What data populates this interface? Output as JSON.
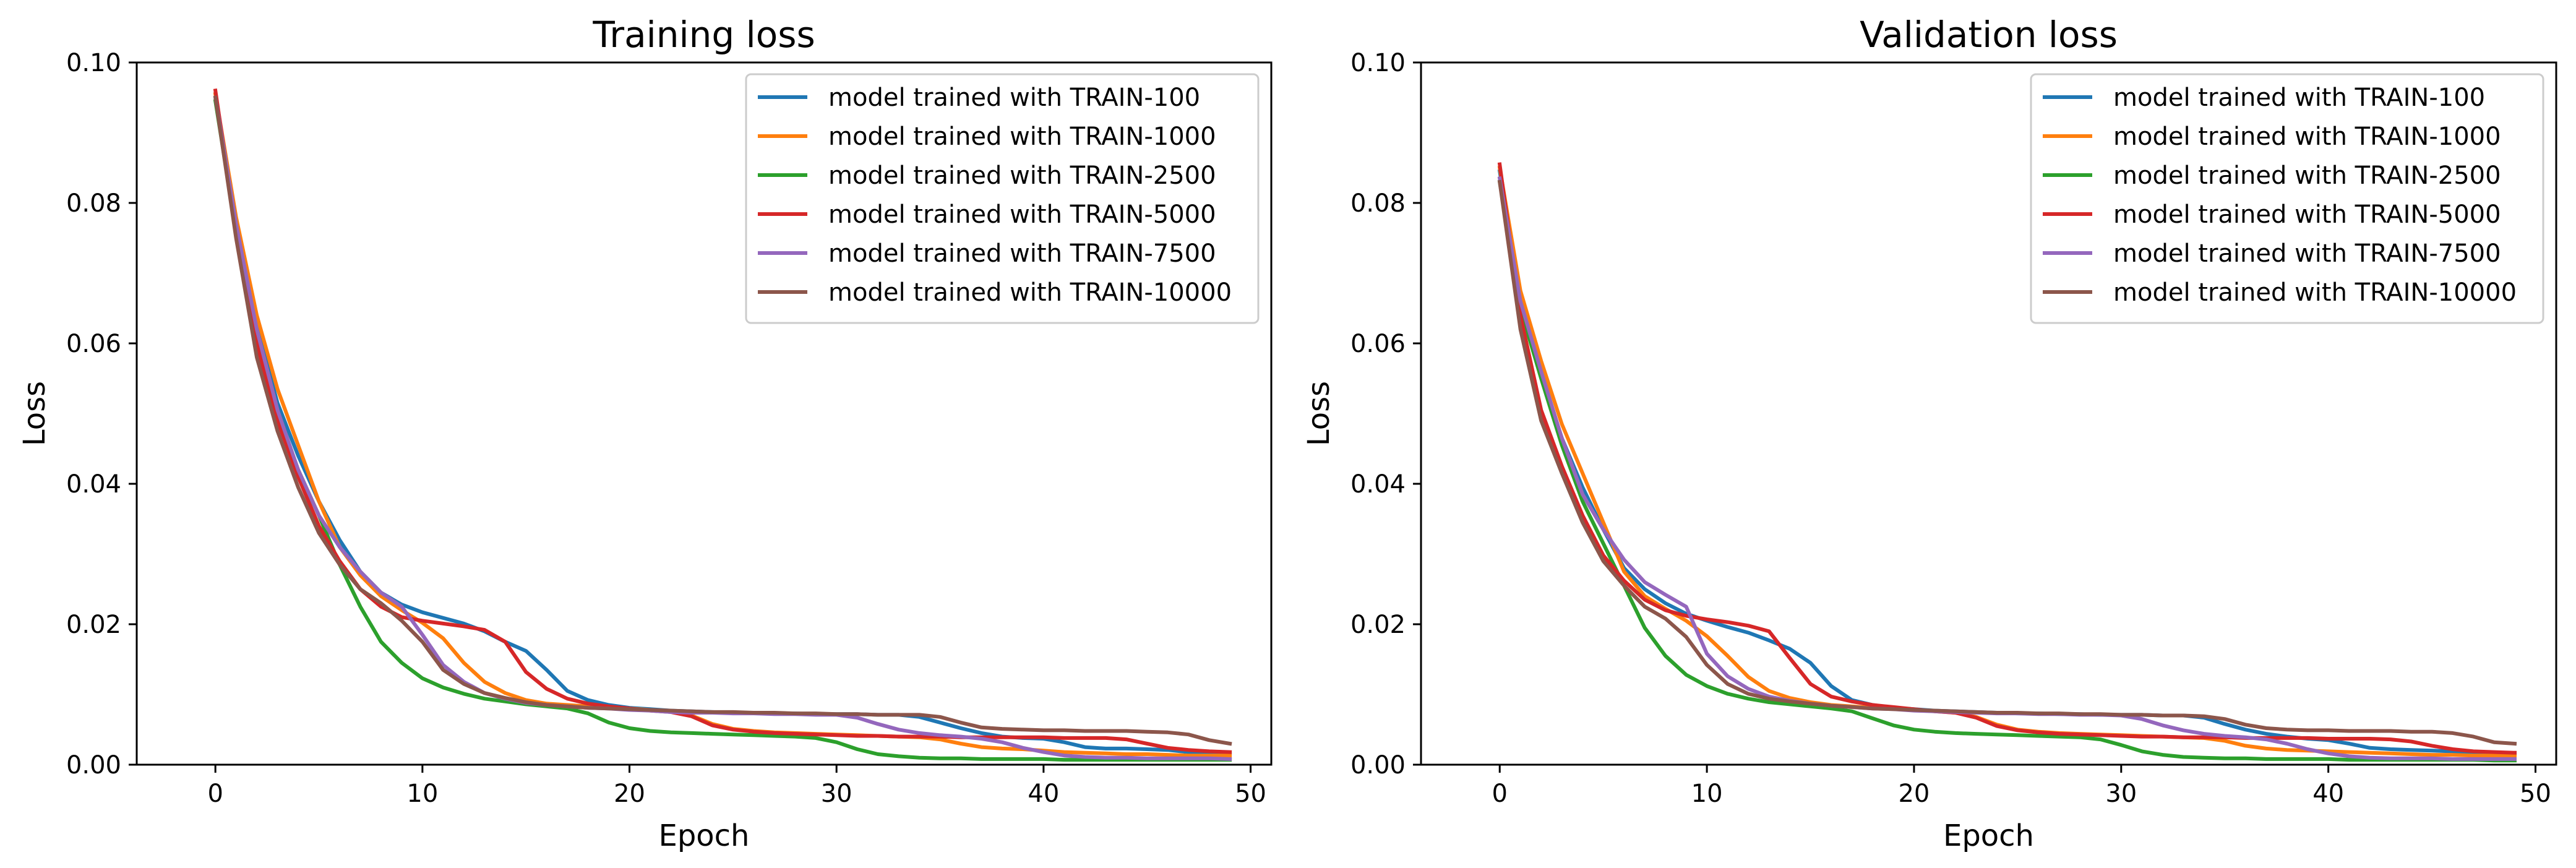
{
  "chart_data": [
    {
      "type": "line",
      "title": "Training loss",
      "xlabel": "Epoch",
      "ylabel": "Loss",
      "xlim": [
        -3.8,
        51
      ],
      "ylim": [
        0,
        0.1
      ],
      "xticks": [
        0,
        10,
        20,
        30,
        40,
        50
      ],
      "xtick_labels": [
        "0",
        "10",
        "20",
        "30",
        "40",
        "50"
      ],
      "yticks": [
        0,
        0.02,
        0.04,
        0.06,
        0.08,
        0.1
      ],
      "ytick_labels": [
        "0.00",
        "0.02",
        "0.04",
        "0.06",
        "0.08",
        "0.10"
      ],
      "grid": false,
      "legend": "top-right",
      "x": [
        0,
        1,
        2,
        3,
        4,
        5,
        6,
        7,
        8,
        9,
        10,
        11,
        12,
        13,
        14,
        15,
        16,
        17,
        18,
        19,
        20,
        21,
        22,
        23,
        24,
        25,
        26,
        27,
        28,
        29,
        30,
        31,
        32,
        33,
        34,
        35,
        36,
        37,
        38,
        39,
        40,
        41,
        42,
        43,
        44,
        45,
        46,
        47,
        48,
        49
      ],
      "series": [
        {
          "name": "model trained with TRAIN-100",
          "color": "#1f77b4",
          "values": [
            0.0955,
            0.0775,
            0.0625,
            0.0515,
            0.044,
            0.0375,
            0.032,
            0.0275,
            0.0245,
            0.0228,
            0.0217,
            0.0209,
            0.0201,
            0.019,
            0.0175,
            0.0162,
            0.0135,
            0.0105,
            0.0092,
            0.0085,
            0.0081,
            0.0079,
            0.0077,
            0.0076,
            0.0075,
            0.0074,
            0.0074,
            0.0073,
            0.0073,
            0.0072,
            0.0072,
            0.0072,
            0.0071,
            0.0071,
            0.0068,
            0.006,
            0.0052,
            0.0045,
            0.004,
            0.0038,
            0.0037,
            0.0032,
            0.0025,
            0.0023,
            0.0023,
            0.0022,
            0.0021,
            0.0018,
            0.0016,
            0.0015
          ]
        },
        {
          "name": "model trained with TRAIN-1000",
          "color": "#ff7f0e",
          "values": [
            0.0955,
            0.078,
            0.064,
            0.0535,
            0.0455,
            0.0375,
            0.031,
            0.027,
            0.024,
            0.022,
            0.0202,
            0.018,
            0.0145,
            0.0118,
            0.0102,
            0.0092,
            0.0087,
            0.0085,
            0.0083,
            0.0082,
            0.008,
            0.0078,
            0.0076,
            0.007,
            0.0058,
            0.0051,
            0.0048,
            0.0046,
            0.0045,
            0.0044,
            0.0043,
            0.0042,
            0.0041,
            0.004,
            0.0039,
            0.0036,
            0.003,
            0.0025,
            0.0023,
            0.0022,
            0.002,
            0.0018,
            0.0017,
            0.0016,
            0.0015,
            0.0015,
            0.0014,
            0.0013,
            0.0013,
            0.0013
          ]
        },
        {
          "name": "model trained with TRAIN-2500",
          "color": "#2ca02c",
          "values": [
            0.0945,
            0.076,
            0.061,
            0.05,
            0.042,
            0.0355,
            0.0285,
            0.0225,
            0.0175,
            0.0145,
            0.0123,
            0.011,
            0.0101,
            0.0094,
            0.009,
            0.0086,
            0.0083,
            0.008,
            0.0073,
            0.006,
            0.0052,
            0.0048,
            0.0046,
            0.0045,
            0.0044,
            0.0043,
            0.0042,
            0.0041,
            0.004,
            0.0038,
            0.0032,
            0.0022,
            0.0015,
            0.0012,
            0.001,
            0.0009,
            0.0009,
            0.0008,
            0.0008,
            0.0008,
            0.0008,
            0.0007,
            0.0007,
            0.0007,
            0.0007,
            0.0007,
            0.0007,
            0.0007,
            0.0007,
            0.0007
          ]
        },
        {
          "name": "model trained with TRAIN-5000",
          "color": "#d62728",
          "values": [
            0.096,
            0.076,
            0.06,
            0.049,
            0.041,
            0.034,
            0.029,
            0.025,
            0.0225,
            0.021,
            0.0205,
            0.0201,
            0.0197,
            0.0192,
            0.0175,
            0.0132,
            0.0108,
            0.0094,
            0.0087,
            0.0083,
            0.008,
            0.0077,
            0.0075,
            0.0069,
            0.0056,
            0.005,
            0.0047,
            0.0045,
            0.0044,
            0.0043,
            0.0042,
            0.0041,
            0.0041,
            0.004,
            0.004,
            0.004,
            0.0039,
            0.0039,
            0.0039,
            0.0039,
            0.0039,
            0.0038,
            0.0038,
            0.0038,
            0.0036,
            0.003,
            0.0024,
            0.0021,
            0.0019,
            0.0018
          ]
        },
        {
          "name": "model trained with TRAIN-7500",
          "color": "#9467bd",
          "values": [
            0.095,
            0.077,
            0.062,
            0.0505,
            0.042,
            0.0355,
            0.031,
            0.0275,
            0.0245,
            0.0225,
            0.0185,
            0.0142,
            0.0118,
            0.0102,
            0.0094,
            0.0088,
            0.0085,
            0.0083,
            0.0081,
            0.008,
            0.0078,
            0.0077,
            0.0075,
            0.0074,
            0.0074,
            0.0073,
            0.0073,
            0.0072,
            0.0072,
            0.0071,
            0.0071,
            0.0067,
            0.0058,
            0.005,
            0.0045,
            0.0042,
            0.004,
            0.0037,
            0.0032,
            0.0024,
            0.0018,
            0.0013,
            0.0011,
            0.001,
            0.001,
            0.0009,
            0.0009,
            0.0009,
            0.0009,
            0.0008
          ]
        },
        {
          "name": "model trained with TRAIN-10000",
          "color": "#8c564b",
          "values": [
            0.095,
            0.075,
            0.058,
            0.0475,
            0.0395,
            0.033,
            0.0285,
            0.025,
            0.023,
            0.0205,
            0.0175,
            0.0135,
            0.0115,
            0.0102,
            0.0095,
            0.0089,
            0.0085,
            0.0083,
            0.0081,
            0.008,
            0.0079,
            0.0078,
            0.0077,
            0.0076,
            0.0075,
            0.0075,
            0.0074,
            0.0074,
            0.0073,
            0.0073,
            0.0072,
            0.0072,
            0.0071,
            0.0071,
            0.0071,
            0.0068,
            0.006,
            0.0053,
            0.0051,
            0.005,
            0.0049,
            0.0049,
            0.0048,
            0.0048,
            0.0048,
            0.0047,
            0.0046,
            0.0043,
            0.0035,
            0.003
          ]
        }
      ]
    },
    {
      "type": "line",
      "title": "Validation loss",
      "xlabel": "Epoch",
      "ylabel": "Loss",
      "xlim": [
        -3.8,
        51
      ],
      "ylim": [
        0,
        0.1
      ],
      "xticks": [
        0,
        10,
        20,
        30,
        40,
        50
      ],
      "xtick_labels": [
        "0",
        "10",
        "20",
        "30",
        "40",
        "50"
      ],
      "yticks": [
        0,
        0.02,
        0.04,
        0.06,
        0.08,
        0.1
      ],
      "ytick_labels": [
        "0.00",
        "0.02",
        "0.04",
        "0.06",
        "0.08",
        "0.10"
      ],
      "grid": false,
      "legend": "top-right",
      "x": [
        0,
        1,
        2,
        3,
        4,
        5,
        6,
        7,
        8,
        9,
        10,
        11,
        12,
        13,
        14,
        15,
        16,
        17,
        18,
        19,
        20,
        21,
        22,
        23,
        24,
        25,
        26,
        27,
        28,
        29,
        30,
        31,
        32,
        33,
        34,
        35,
        36,
        37,
        38,
        39,
        40,
        41,
        42,
        43,
        44,
        45,
        46,
        47,
        48,
        49
      ],
      "series": [
        {
          "name": "model trained with TRAIN-100",
          "color": "#1f77b4",
          "values": [
            0.0845,
            0.0665,
            0.0555,
            0.0465,
            0.0395,
            0.0335,
            0.028,
            0.025,
            0.023,
            0.0215,
            0.0205,
            0.0196,
            0.0188,
            0.0177,
            0.0165,
            0.0145,
            0.0112,
            0.0092,
            0.0085,
            0.0081,
            0.0079,
            0.0077,
            0.0076,
            0.0075,
            0.0074,
            0.0073,
            0.0073,
            0.0072,
            0.0072,
            0.0071,
            0.0071,
            0.0071,
            0.007,
            0.007,
            0.0067,
            0.0058,
            0.005,
            0.0044,
            0.004,
            0.0037,
            0.0035,
            0.003,
            0.0024,
            0.0022,
            0.0021,
            0.002,
            0.0019,
            0.0017,
            0.0015,
            0.0014
          ]
        },
        {
          "name": "model trained with TRAIN-1000",
          "color": "#ff7f0e",
          "values": [
            0.085,
            0.0675,
            0.0575,
            0.0485,
            0.0415,
            0.0345,
            0.0275,
            0.024,
            0.0222,
            0.0205,
            0.0183,
            0.0155,
            0.0125,
            0.0105,
            0.0095,
            0.0089,
            0.0085,
            0.0083,
            0.0081,
            0.008,
            0.0078,
            0.0076,
            0.0074,
            0.0068,
            0.0057,
            0.005,
            0.0047,
            0.0045,
            0.0044,
            0.0043,
            0.0042,
            0.0041,
            0.004,
            0.0039,
            0.0038,
            0.0034,
            0.0027,
            0.0023,
            0.0021,
            0.002,
            0.0019,
            0.0018,
            0.0017,
            0.0016,
            0.0015,
            0.0014,
            0.0014,
            0.0013,
            0.0013,
            0.0012
          ]
        },
        {
          "name": "model trained with TRAIN-2500",
          "color": "#2ca02c",
          "values": [
            0.083,
            0.065,
            0.055,
            0.0455,
            0.0375,
            0.0315,
            0.0255,
            0.0195,
            0.0155,
            0.0128,
            0.0112,
            0.0101,
            0.0094,
            0.0089,
            0.0086,
            0.0083,
            0.008,
            0.0076,
            0.0066,
            0.0056,
            0.005,
            0.0047,
            0.0045,
            0.0044,
            0.0043,
            0.0042,
            0.0041,
            0.004,
            0.0039,
            0.0036,
            0.0028,
            0.0019,
            0.0014,
            0.0011,
            0.001,
            0.0009,
            0.0009,
            0.0008,
            0.0008,
            0.0008,
            0.0008,
            0.0007,
            0.0007,
            0.0007,
            0.0007,
            0.0007,
            0.0007,
            0.0007,
            0.0006,
            0.0006
          ]
        },
        {
          "name": "model trained with TRAIN-5000",
          "color": "#d62728",
          "values": [
            0.0855,
            0.064,
            0.0505,
            0.0425,
            0.0355,
            0.0298,
            0.0262,
            0.0235,
            0.022,
            0.0212,
            0.0207,
            0.0203,
            0.0198,
            0.019,
            0.0152,
            0.0115,
            0.0097,
            0.009,
            0.0085,
            0.0082,
            0.0079,
            0.0076,
            0.0074,
            0.0067,
            0.0055,
            0.0049,
            0.0046,
            0.0044,
            0.0043,
            0.0042,
            0.0041,
            0.004,
            0.004,
            0.0039,
            0.0039,
            0.0039,
            0.0038,
            0.0038,
            0.0038,
            0.0038,
            0.0037,
            0.0037,
            0.0037,
            0.0036,
            0.0033,
            0.0027,
            0.0022,
            0.0019,
            0.0018,
            0.0017
          ]
        },
        {
          "name": "model trained with TRAIN-7500",
          "color": "#9467bd",
          "values": [
            0.0835,
            0.066,
            0.056,
            0.0465,
            0.0385,
            0.0335,
            0.0292,
            0.026,
            0.0242,
            0.0225,
            0.0158,
            0.0126,
            0.0108,
            0.0097,
            0.0091,
            0.0087,
            0.0084,
            0.0082,
            0.008,
            0.0079,
            0.0077,
            0.0076,
            0.0075,
            0.0074,
            0.0073,
            0.0073,
            0.0072,
            0.0072,
            0.0071,
            0.0071,
            0.007,
            0.0065,
            0.0056,
            0.0049,
            0.0044,
            0.0041,
            0.0039,
            0.0036,
            0.003,
            0.0022,
            0.0016,
            0.0012,
            0.001,
            0.0009,
            0.0009,
            0.0009,
            0.0008,
            0.0008,
            0.0008,
            0.0008
          ]
        },
        {
          "name": "model trained with TRAIN-10000",
          "color": "#8c564b",
          "values": [
            0.083,
            0.062,
            0.049,
            0.0415,
            0.0345,
            0.029,
            0.0255,
            0.0225,
            0.0208,
            0.0182,
            0.0142,
            0.0115,
            0.0101,
            0.0094,
            0.009,
            0.0087,
            0.0084,
            0.0082,
            0.008,
            0.0079,
            0.0078,
            0.0077,
            0.0076,
            0.0075,
            0.0074,
            0.0074,
            0.0073,
            0.0073,
            0.0072,
            0.0072,
            0.0071,
            0.0071,
            0.007,
            0.007,
            0.0069,
            0.0065,
            0.0057,
            0.0052,
            0.005,
            0.0049,
            0.0049,
            0.0048,
            0.0048,
            0.0048,
            0.0047,
            0.0047,
            0.0045,
            0.004,
            0.0032,
            0.003
          ]
        }
      ]
    }
  ]
}
